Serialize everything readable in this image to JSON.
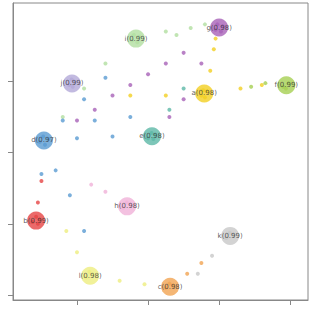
{
  "chart_data": {
    "type": "scatter",
    "xlim": [
      0.2,
      8.5
    ],
    "ylim": [
      1.86,
      10.2
    ],
    "xticks": [
      2,
      4,
      6,
      8
    ],
    "yticks": [
      2,
      4,
      6,
      8
    ],
    "tick_labels": false,
    "grid": false,
    "series": [
      {
        "name": "g(0.98)",
        "color": "#a862b8",
        "x": [
          6.0,
          5.9,
          6.1,
          5.95,
          6.05,
          5.0,
          4.0,
          3.0,
          2.0,
          4.5,
          3.5,
          2.5,
          5.5,
          5.0,
          4.6
        ],
        "y": [
          9.51,
          9.45,
          9.55,
          9.6,
          9.4,
          8.8,
          8.2,
          7.6,
          6.9,
          8.5,
          7.9,
          7.2,
          8.5,
          7.5,
          7.0
        ]
      },
      {
        "name": "i(0.99)",
        "color": "#b2dea0",
        "x": [
          3.66,
          3.55,
          3.75,
          3.6,
          3.7,
          4.5,
          5.2,
          2.8,
          2.2,
          1.6,
          4.8,
          5.6
        ],
        "y": [
          9.2,
          9.15,
          9.25,
          9.3,
          9.1,
          9.4,
          9.5,
          8.5,
          7.8,
          7.0,
          9.3,
          9.6
        ]
      },
      {
        "name": "j(0.99)",
        "color": "#b3a9d8",
        "x": [
          1.86,
          1.78,
          1.94,
          1.85,
          1.88
        ],
        "y": [
          7.94,
          7.9,
          7.98,
          8.05,
          7.85
        ]
      },
      {
        "name": "a(0.98)",
        "color": "#f3cf22",
        "x": [
          5.58,
          5.5,
          5.65,
          5.55,
          5.6,
          5.75,
          5.85,
          5.9,
          6.6,
          7.2,
          4.5,
          3.5
        ],
        "y": [
          7.66,
          7.6,
          7.72,
          7.75,
          7.55,
          8.3,
          8.9,
          9.2,
          7.8,
          7.9,
          7.6,
          7.6
        ]
      },
      {
        "name": "f(0.99)",
        "color": "#a6cf52",
        "x": [
          7.89,
          7.8,
          7.95,
          7.88,
          7.3,
          6.9
        ],
        "y": [
          7.89,
          7.85,
          7.95,
          7.8,
          7.95,
          7.85
        ]
      },
      {
        "name": "d(0.97)",
        "color": "#5a9bd2",
        "x": [
          1.07,
          0.95,
          1.2,
          1.05,
          1.1,
          1.6,
          2.2,
          2.8,
          2.0,
          3.0,
          1.4,
          1.8,
          2.2,
          1.0,
          3.5,
          2.5
        ],
        "y": [
          6.34,
          6.3,
          6.38,
          6.45,
          6.22,
          6.9,
          7.5,
          8.1,
          6.4,
          6.45,
          5.5,
          4.8,
          3.8,
          5.4,
          7.0,
          6.9
        ]
      },
      {
        "name": "e(0.98)",
        "color": "#5cb8a6",
        "x": [
          4.11,
          4.0,
          4.2,
          4.1,
          4.15,
          4.6,
          5.0
        ],
        "y": [
          6.46,
          6.4,
          6.5,
          6.55,
          6.38,
          7.2,
          7.8
        ]
      },
      {
        "name": "h(0.98)",
        "color": "#f0b2d8",
        "x": [
          3.41,
          3.3,
          3.5,
          3.4,
          2.8,
          2.4
        ],
        "y": [
          4.49,
          4.45,
          4.55,
          4.6,
          4.9,
          5.1
        ]
      },
      {
        "name": "b(0.99)",
        "color": "#e64545",
        "x": [
          0.85,
          0.75,
          0.95,
          0.85,
          0.9,
          0.9,
          1.0
        ],
        "y": [
          4.09,
          4.05,
          4.12,
          4.2,
          4.0,
          4.6,
          5.2
        ]
      },
      {
        "name": "k(0.99)",
        "color": "#c8c8c8",
        "x": [
          6.31,
          6.2,
          6.4,
          6.3,
          5.8,
          5.4
        ],
        "y": [
          3.66,
          3.6,
          3.7,
          3.75,
          3.1,
          2.6
        ]
      },
      {
        "name": "l(0.98)",
        "color": "#eeee80",
        "x": [
          2.37,
          2.25,
          2.45,
          2.35,
          2.0,
          1.7,
          3.2,
          3.9
        ],
        "y": [
          2.54,
          2.5,
          2.58,
          2.65,
          3.2,
          3.8,
          2.4,
          2.3
        ]
      },
      {
        "name": "c(0.98)",
        "color": "#f1a452",
        "x": [
          4.62,
          4.5,
          4.7,
          4.6,
          5.1,
          5.5
        ],
        "y": [
          2.23,
          2.2,
          2.27,
          2.32,
          2.6,
          2.9
        ]
      }
    ]
  }
}
